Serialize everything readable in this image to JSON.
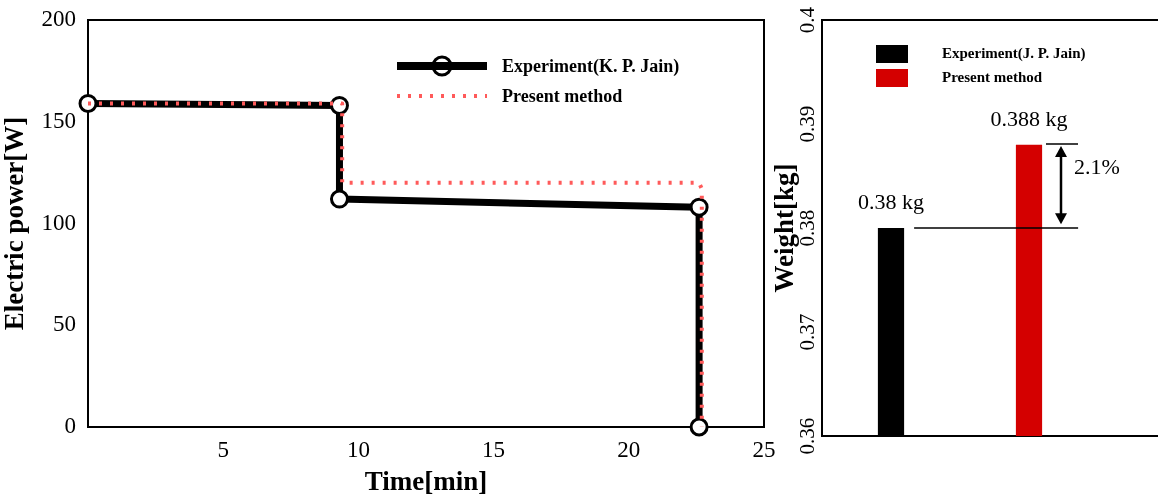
{
  "chart_data": [
    {
      "type": "line",
      "xlabel": "Time[min]",
      "ylabel": "Electric power[W]",
      "xlim": [
        0,
        25
      ],
      "ylim": [
        0,
        200
      ],
      "xticks": [
        5,
        10,
        15,
        20,
        25
      ],
      "yticks": [
        0,
        50,
        100,
        150,
        200
      ],
      "legend": "top right",
      "series": [
        {
          "name": "Experiment(K. P. Jain)",
          "color": "#000000",
          "marker": "circle",
          "line_style": "solid",
          "x": [
            0,
            9.3,
            9.3,
            22.6,
            22.6
          ],
          "values": [
            159,
            158,
            112,
            108,
            0
          ]
        },
        {
          "name": "Present method",
          "color": "#ff5a5a",
          "marker": "none",
          "line_style": "dotted",
          "x": [
            0,
            9.4,
            9.4,
            22.6,
            22.7,
            22.7
          ],
          "values": [
            159,
            159,
            120,
            120,
            117,
            0
          ]
        }
      ]
    },
    {
      "type": "bar",
      "ylabel": "Weight[kg]",
      "categories": [
        null,
        null
      ],
      "ylim": [
        0.36,
        0.4
      ],
      "yticks": [
        0.36,
        0.37,
        0.38,
        0.39,
        0.4
      ],
      "legend": "top",
      "series": [
        {
          "name": "Experiment(J. P. Jain)",
          "color": "#000000",
          "values": [
            0.38,
            null
          ],
          "value_labels": [
            "0.38 kg",
            null
          ]
        },
        {
          "name": "Present method",
          "color": "#d40000",
          "values": [
            null,
            0.388
          ],
          "value_labels": [
            null,
            "0.388 kg"
          ]
        }
      ],
      "ref_lines": [
        {
          "axis": "y",
          "value": 0.38
        }
      ],
      "annotations": [
        "2.1%"
      ]
    }
  ]
}
